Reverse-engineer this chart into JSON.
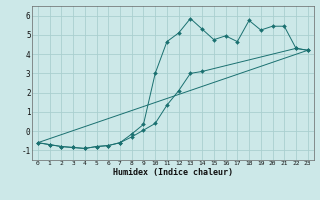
{
  "xlabel": "Humidex (Indice chaleur)",
  "bg_color": "#cce8e8",
  "grid_color": "#aacfcf",
  "line_color": "#1a7070",
  "xlim": [
    -0.5,
    23.5
  ],
  "ylim": [
    -1.5,
    6.5
  ],
  "xticks": [
    0,
    1,
    2,
    3,
    4,
    5,
    6,
    7,
    8,
    9,
    10,
    11,
    12,
    13,
    14,
    15,
    16,
    17,
    18,
    19,
    20,
    21,
    22,
    23
  ],
  "yticks": [
    -1,
    0,
    1,
    2,
    3,
    4,
    5,
    6
  ],
  "line1_x": [
    0,
    1,
    2,
    3,
    4,
    5,
    6,
    7,
    8,
    9,
    10,
    11,
    12,
    13,
    14,
    22,
    23
  ],
  "line1_y": [
    -0.6,
    -0.7,
    -0.8,
    -0.85,
    -0.9,
    -0.8,
    -0.75,
    -0.6,
    -0.3,
    0.05,
    0.4,
    1.35,
    2.1,
    3.0,
    3.1,
    4.3,
    4.2
  ],
  "line2_x": [
    0,
    1,
    2,
    3,
    4,
    5,
    6,
    7,
    8,
    9,
    10,
    11,
    12,
    13,
    14,
    15,
    16,
    17,
    18,
    19,
    20,
    21,
    22,
    23
  ],
  "line2_y": [
    -0.6,
    -0.7,
    -0.8,
    -0.85,
    -0.9,
    -0.8,
    -0.75,
    -0.6,
    -0.15,
    0.35,
    3.0,
    4.65,
    5.1,
    5.85,
    5.3,
    4.75,
    4.95,
    4.65,
    5.75,
    5.25,
    5.45,
    5.45,
    4.3,
    4.2
  ],
  "line3_x": [
    0,
    23
  ],
  "line3_y": [
    -0.6,
    4.2
  ]
}
